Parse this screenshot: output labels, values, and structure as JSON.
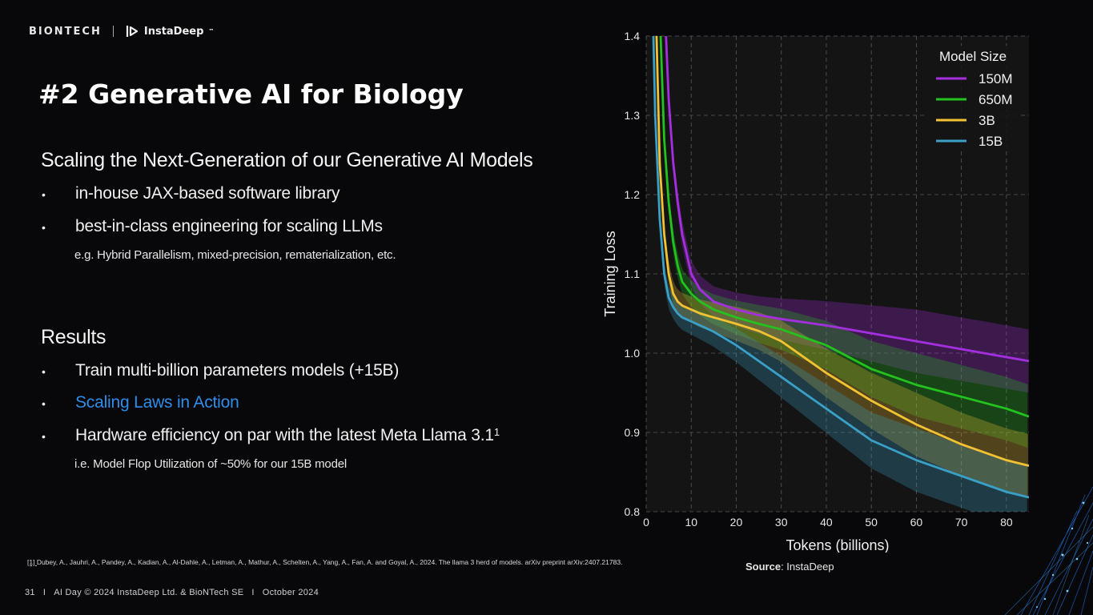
{
  "header": {
    "brand_left": "BIONTECH",
    "brand_right": "InstaDeep",
    "brand_right_mark": "™"
  },
  "title": "#2 Generative AI for Biology",
  "scaling": {
    "heading": "Scaling the Next-Generation of our Generative AI Models",
    "bullets": [
      "in-house JAX-based software library",
      "best-in-class engineering for scaling LLMs"
    ],
    "note": "e.g. Hybrid Parallelism, mixed-precision, rematerialization, etc.",
    "bullet_symbol": "•"
  },
  "results": {
    "heading": "Results",
    "bullets": [
      "Train multi-billion parameters models (+15B)",
      "Scaling Laws in Action",
      "Hardware efficiency on par with the latest Meta Llama 3.1"
    ],
    "bullet3_sup": "1",
    "note": "i.e. Model Flop Utilization of ~50% for our 15B model",
    "link_color": "#2e8de8"
  },
  "footnote": {
    "ref": "[1] ",
    "text": "Dubey, A., Jauhri, A., Pandey, A., Kadian, A., Al-Dahle, A., Letman, A., Mathur, A., Schelten, A., Yang, A., Fan, A. and Goyal, A., 2024. The llama 3 herd of models. arXiv preprint arXiv:2407.21783."
  },
  "source": {
    "label": "Source",
    "value": ": InstaDeep"
  },
  "footer": {
    "page": "31",
    "event": "AI Day © 2024 InstaDeep Ltd. & BioNTech SE",
    "date": "October 2024",
    "sep": "I"
  },
  "chart_data": {
    "type": "line",
    "title": "",
    "xlabel": "Tokens (billions)",
    "ylabel": "Training Loss",
    "xlim": [
      0,
      85
    ],
    "ylim": [
      0.8,
      1.4
    ],
    "xticks": [
      0,
      10,
      20,
      30,
      40,
      50,
      60,
      70,
      80
    ],
    "yticks": [
      0.8,
      0.9,
      1.0,
      1.1,
      1.2,
      1.3,
      1.4
    ],
    "grid": true,
    "legend_title": "Model Size",
    "legend_position": "top-right",
    "series": [
      {
        "name": "150M",
        "color": "#a52fe0",
        "x": [
          4.4,
          5,
          6,
          7,
          8,
          10,
          12,
          15,
          20,
          25,
          30,
          40,
          50,
          60,
          70,
          80,
          85
        ],
        "y": [
          1.4,
          1.32,
          1.24,
          1.19,
          1.15,
          1.1,
          1.08,
          1.065,
          1.055,
          1.048,
          1.043,
          1.035,
          1.025,
          1.015,
          1.005,
          0.995,
          0.99
        ]
      },
      {
        "name": "650M",
        "color": "#23c21f",
        "x": [
          3.2,
          4,
          5,
          6,
          7,
          8,
          10,
          12,
          15,
          20,
          25,
          30,
          40,
          50,
          60,
          70,
          80,
          85
        ],
        "y": [
          1.4,
          1.27,
          1.19,
          1.14,
          1.11,
          1.09,
          1.075,
          1.065,
          1.055,
          1.045,
          1.037,
          1.03,
          1.01,
          0.98,
          0.96,
          0.945,
          0.93,
          0.92
        ]
      },
      {
        "name": "3B",
        "color": "#f2c232",
        "x": [
          2.3,
          3,
          4,
          5,
          6,
          7,
          8,
          10,
          12,
          15,
          20,
          25,
          30,
          40,
          50,
          60,
          70,
          80,
          85
        ],
        "y": [
          1.4,
          1.24,
          1.15,
          1.1,
          1.075,
          1.065,
          1.06,
          1.055,
          1.05,
          1.045,
          1.037,
          1.028,
          1.015,
          0.975,
          0.94,
          0.91,
          0.885,
          0.865,
          0.858
        ]
      },
      {
        "name": "15B",
        "color": "#3aa0c8",
        "x": [
          1.6,
          2,
          3,
          4,
          5,
          6,
          7,
          8,
          10,
          12,
          15,
          20,
          25,
          30,
          40,
          50,
          60,
          70,
          80,
          85
        ],
        "y": [
          1.4,
          1.3,
          1.17,
          1.1,
          1.07,
          1.058,
          1.05,
          1.045,
          1.04,
          1.035,
          1.027,
          1.01,
          0.99,
          0.97,
          0.93,
          0.89,
          0.865,
          0.845,
          0.825,
          0.818
        ]
      }
    ]
  }
}
